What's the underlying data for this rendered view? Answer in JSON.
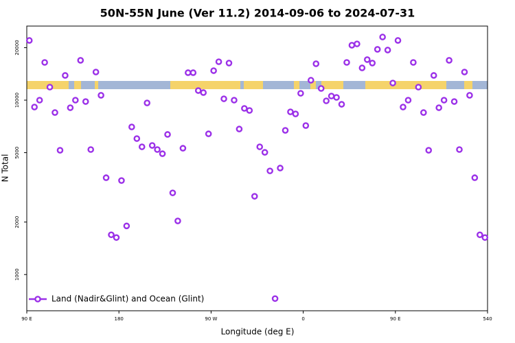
{
  "chart_data": {
    "type": "scatter",
    "title": "50N-55N June (Ver 11.2)   2014-09-06 to 2024-07-31",
    "xlabel": "Longitude (deg E)",
    "ylabel": "N Total",
    "log_y": true,
    "legend": "bottom-left",
    "xlim": [
      90,
      540
    ],
    "xticks": [
      {
        "value": 90,
        "label": "90 E"
      },
      180,
      {
        "value": 270,
        "label": "90 W"
      },
      {
        "value": 360,
        "label": "0"
      },
      {
        "value": 450,
        "label": "90 E"
      },
      540
    ],
    "ylim": [
      620,
      26600
    ],
    "yticks": [
      1000,
      2000,
      5000,
      10000,
      20000
    ],
    "x": [
      92.5,
      97.5,
      102.5,
      107.5,
      112.5,
      117.5,
      122.5,
      127.5,
      132.5,
      137.5,
      142.5,
      147.5,
      152.5,
      157.5,
      162.5,
      167.5,
      172.5,
      177.5,
      182.5,
      187.5,
      192.5,
      197.5,
      202.5,
      207.5,
      212.5,
      217.5,
      222.5,
      227.5,
      232.5,
      237.5,
      242.5,
      247.5,
      252.5,
      257.5,
      262.5,
      267.5,
      272.5,
      277.5,
      282.5,
      287.5,
      292.5,
      297.5,
      302.5,
      307.5,
      312.5,
      317.5,
      322.5,
      327.5,
      332.5,
      337.5,
      342.5,
      347.5,
      352.5,
      357.5,
      362.5,
      367.5,
      372.5,
      377.5,
      382.5,
      387.5,
      392.5,
      397.5,
      402.5,
      407.5,
      412.5,
      417.5,
      422.5,
      427.5,
      432.5,
      437.5,
      442.5,
      447.5,
      452.5,
      457.5,
      462.5,
      467.5,
      472.5,
      477.5,
      482.5,
      487.5,
      492.5,
      497.5,
      502.5,
      507.5,
      512.5,
      517.5,
      522.5,
      527.5,
      532.5,
      537.5
    ],
    "series": [
      {
        "name": "Land (Nadir&Glint) and Ocean (Glint)",
        "color": "#9b30e8",
        "values": [
          22000,
          9130,
          10000,
          16460,
          11880,
          8490,
          5160,
          13860,
          9050,
          10000,
          16920,
          9820,
          5210,
          14500,
          10660,
          3590,
          1690,
          1630,
          3460,
          1900,
          7020,
          6020,
          5400,
          9640,
          5500,
          5210,
          4930,
          6360,
          2940,
          2030,
          5300,
          14370,
          14370,
          11350,
          11050,
          6410,
          14760,
          16610,
          10180,
          16320,
          10000,
          6830,
          8970,
          8730,
          2810,
          5400,
          5020,
          3930,
          728,
          4080,
          6710,
          8570,
          8340,
          10950,
          7150,
          13010,
          16170,
          11670,
          9910,
          10560,
          10370,
          9470,
          16460,
          20650,
          21020,
          15310,
          17080,
          16320,
          19560,
          23020,
          19380,
          12540,
          22000,
          9130,
          10000,
          16460,
          11880,
          8490,
          5160,
          13860,
          9050,
          10000,
          16920,
          9820,
          5210,
          14500,
          10660,
          3590,
          1690,
          1630
        ]
      }
    ]
  }
}
